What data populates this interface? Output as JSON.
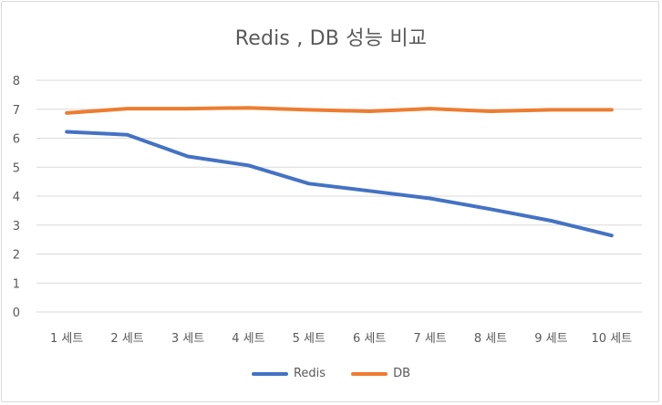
{
  "chart_data": {
    "type": "line",
    "title": "Redis , DB 성능 비교",
    "xlabel": "",
    "ylabel": "",
    "categories": [
      "1 세트",
      "2 세트",
      "3 세트",
      "4 세트",
      "5 세트",
      "6 세트",
      "7 세트",
      "8 세트",
      "9 세트",
      "10 세트"
    ],
    "ylim": [
      0,
      8
    ],
    "yticks": [
      "0",
      "1",
      "2",
      "3",
      "4",
      "5",
      "6",
      "7",
      "8"
    ],
    "grid": true,
    "legend_position": "bottom",
    "series": [
      {
        "name": "Redis",
        "color": "#4472c4",
        "values": [
          6.22,
          6.12,
          5.37,
          5.06,
          4.43,
          4.18,
          3.92,
          3.55,
          3.15,
          2.64
        ]
      },
      {
        "name": "DB",
        "color": "#ed7d31",
        "values": [
          6.87,
          7.02,
          7.02,
          7.05,
          6.98,
          6.93,
          7.02,
          6.93,
          6.98,
          6.98
        ]
      }
    ]
  }
}
